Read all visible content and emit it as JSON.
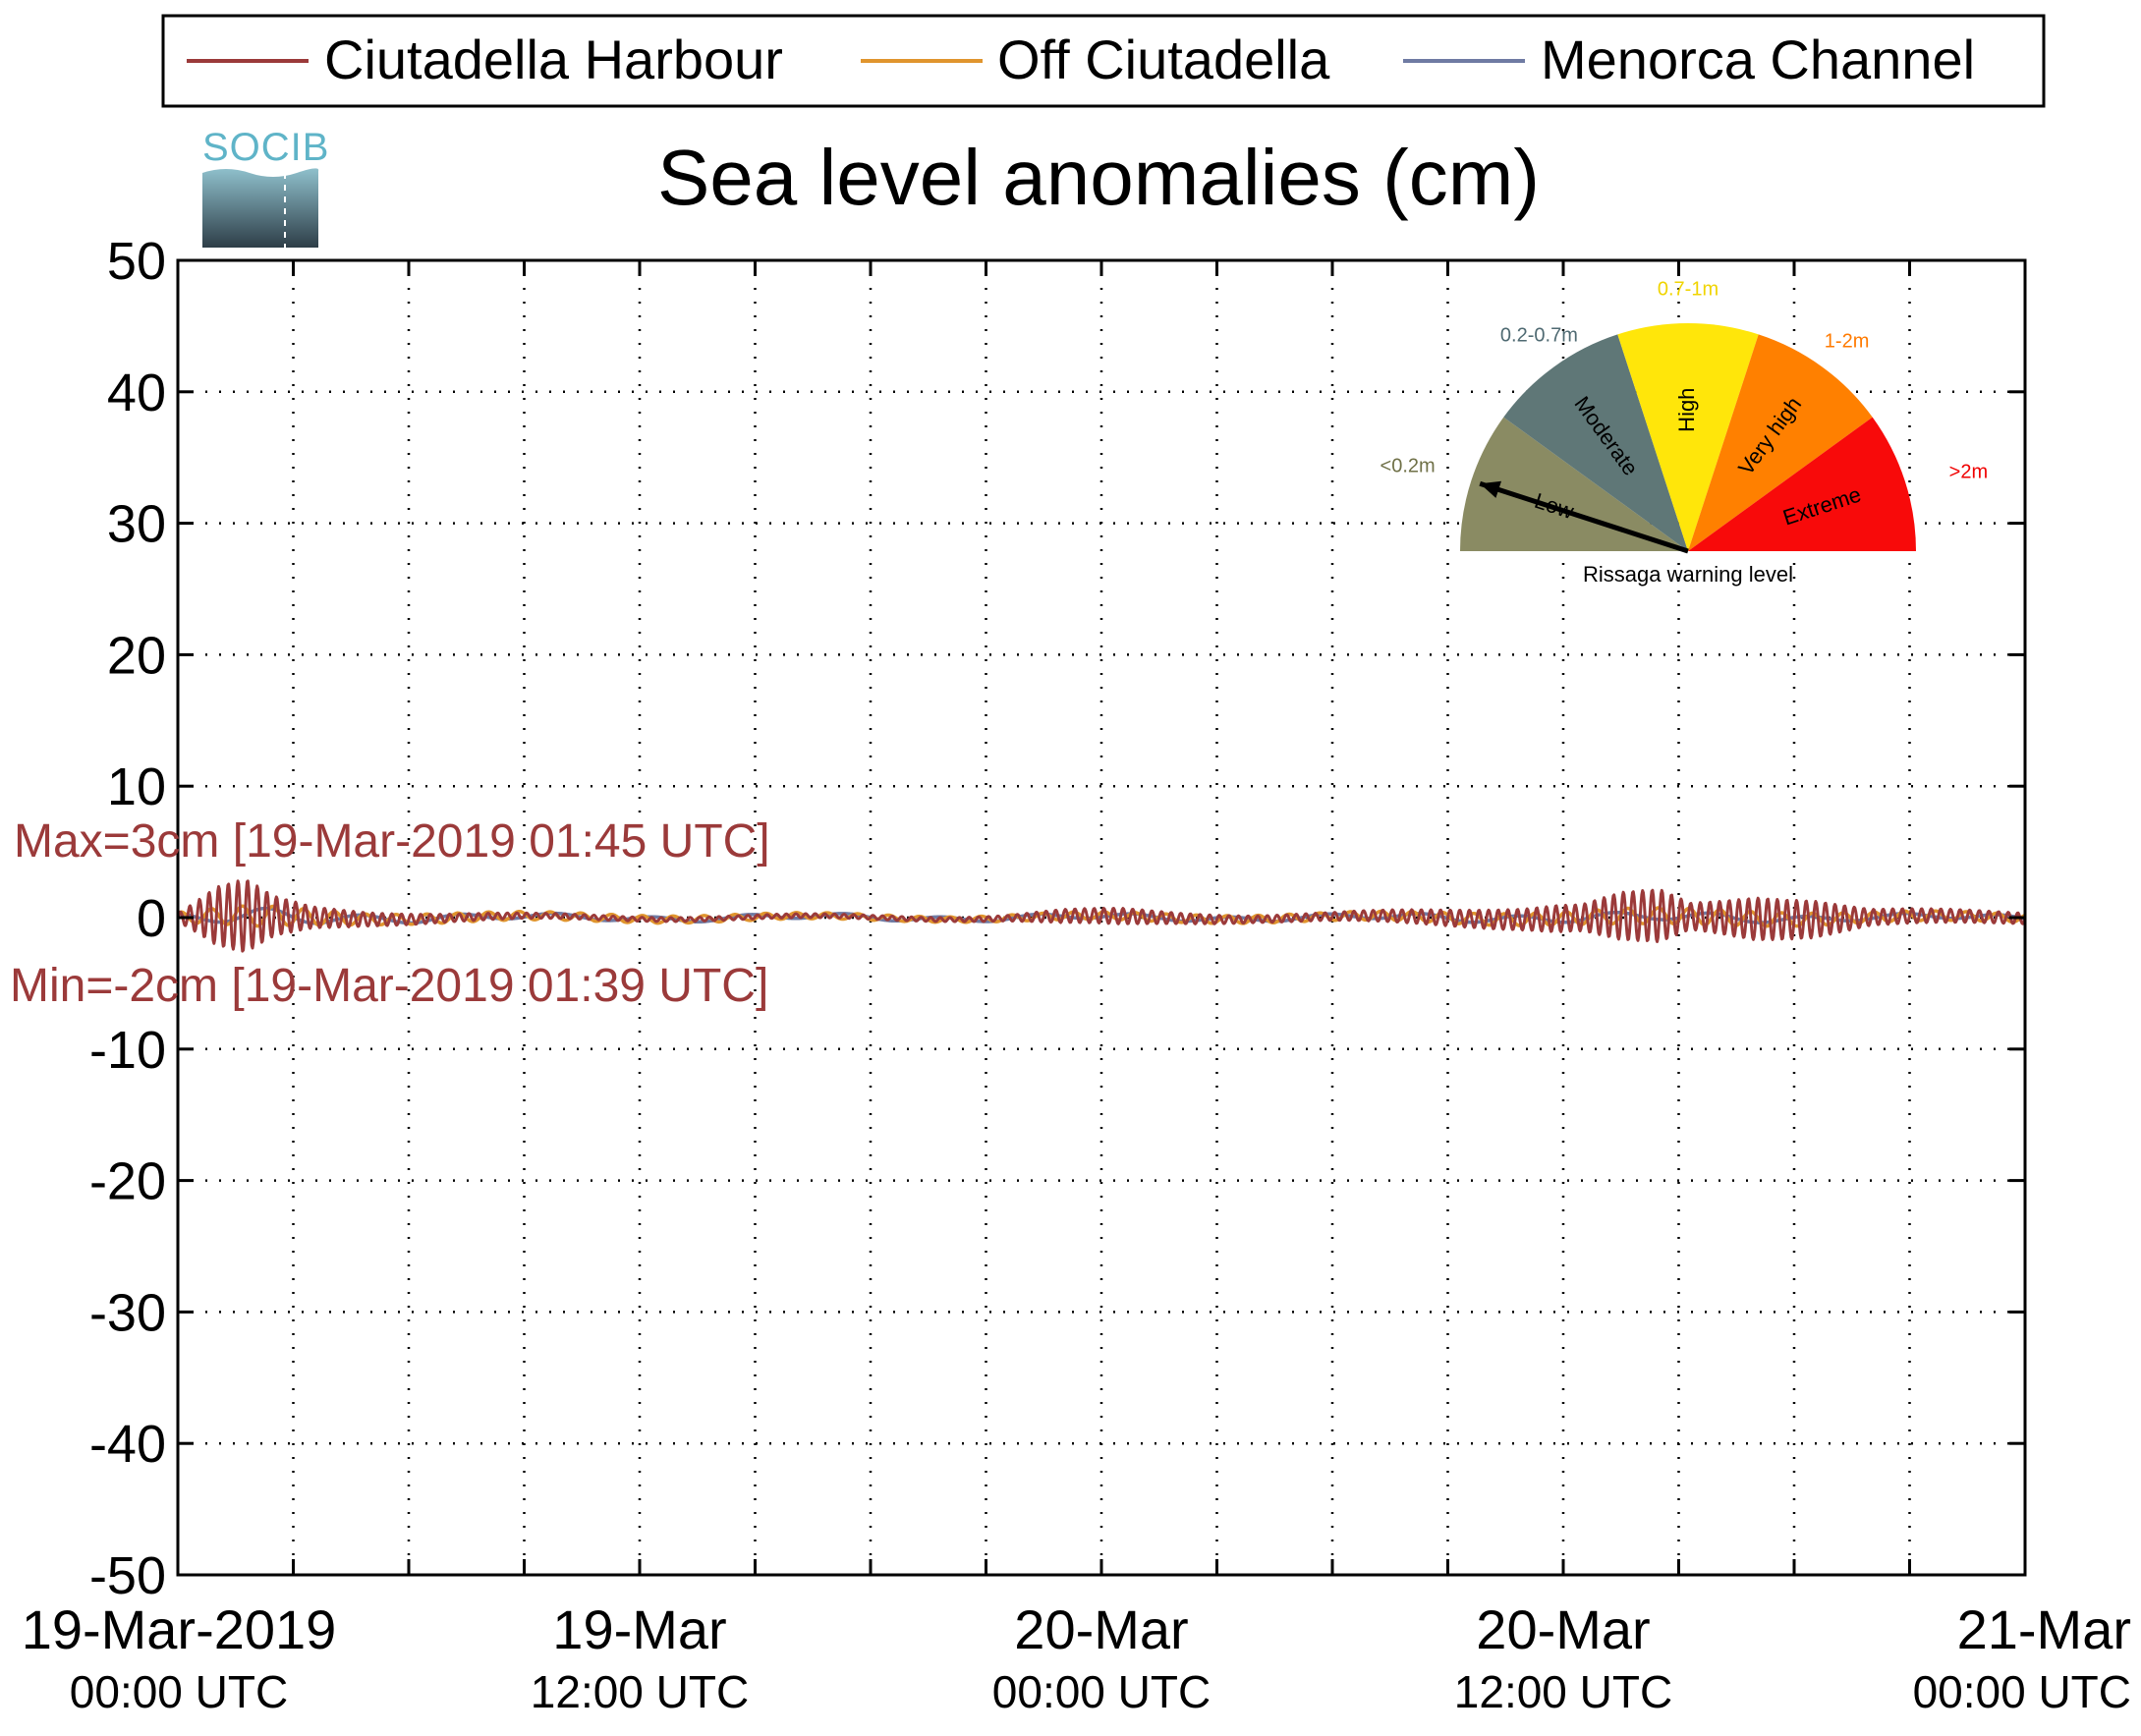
{
  "chart_data": {
    "type": "line",
    "title": "Sea level anomalies (cm)",
    "ylim": [
      -50,
      50
    ],
    "yticks": [
      50,
      40,
      30,
      20,
      10,
      0,
      -10,
      -20,
      -30,
      -40,
      -50
    ],
    "ytick_labels": [
      "50",
      "40",
      "30",
      "20",
      "10",
      "0",
      "-10",
      "-20",
      "-30",
      "-40",
      "-50"
    ],
    "x_range_hours": [
      0,
      48
    ],
    "x_grid_step_hours": 3,
    "xticks": [
      {
        "hour": 0,
        "date": "19-Mar-2019",
        "time": "00:00 UTC"
      },
      {
        "hour": 12,
        "date": "19-Mar",
        "time": "12:00 UTC"
      },
      {
        "hour": 24,
        "date": "20-Mar",
        "time": "00:00 UTC"
      },
      {
        "hour": 36,
        "date": "20-Mar",
        "time": "12:00 UTC"
      },
      {
        "hour": 48,
        "date": "21-Mar",
        "time": "00:00 UTC"
      }
    ],
    "grid": true,
    "legend_position": "top",
    "series": [
      {
        "name": "Ciutadella Harbour",
        "color": "#9b3a3a",
        "envelope_x": [
          0,
          0.5,
          1,
          1.75,
          2.5,
          3.5,
          5,
          7,
          9,
          12,
          16,
          20,
          21.5,
          23,
          24.5,
          26,
          28,
          30,
          33,
          35,
          35.8,
          36.5,
          37.5,
          38.5,
          39.3,
          40,
          41,
          42.5,
          44,
          46,
          48
        ],
        "envelope_amp": [
          0.3,
          1.2,
          2.2,
          2.8,
          1.5,
          0.8,
          0.5,
          0.3,
          0.2,
          0.15,
          0.15,
          0.15,
          0.2,
          0.5,
          0.6,
          0.4,
          0.25,
          0.3,
          0.6,
          0.8,
          1.0,
          1.0,
          1.8,
          2.0,
          1.0,
          1.2,
          1.6,
          1.4,
          0.6,
          0.5,
          0.4
        ],
        "period_hours": 0.25
      },
      {
        "name": "Off Ciutadella",
        "color": "#e0952e",
        "envelope_x": [
          0,
          2,
          5,
          10,
          20,
          24,
          30,
          36,
          38,
          40,
          44,
          48
        ],
        "envelope_amp": [
          0.4,
          0.8,
          0.4,
          0.3,
          0.2,
          0.3,
          0.3,
          0.5,
          0.6,
          0.6,
          0.4,
          0.3
        ],
        "period_hours": 0.8
      },
      {
        "name": "Menorca Channel",
        "color": "#6f7ba3",
        "envelope_x": [
          0,
          2,
          5,
          10,
          20,
          24,
          30,
          36,
          40,
          44,
          48
        ],
        "envelope_amp": [
          0.3,
          0.6,
          0.3,
          0.2,
          0.2,
          0.2,
          0.2,
          0.3,
          0.3,
          0.2,
          0.2
        ],
        "period_hours": 2.5
      }
    ],
    "annotations": [
      {
        "text": "Max=3cm [19-Mar-2019 01:45 UTC]",
        "color": "#9b3a3a"
      },
      {
        "text": "Min=-2cm [19-Mar-2019 01:39 UTC]",
        "color": "#9b3a3a"
      }
    ]
  },
  "logo_text": "SOCIB",
  "gauge": {
    "title": "Rissaga warning level",
    "current_level": "Low",
    "sectors": [
      {
        "name": "Low",
        "range": "<0.2m",
        "color": "#8a8b63",
        "range_color": "#6f7047"
      },
      {
        "name": "Moderate",
        "range": "0.2-0.7m",
        "color": "#5f7777",
        "range_color": "#4f6a72"
      },
      {
        "name": "High",
        "range": "0.7-1m",
        "color": "#ffe60a",
        "range_color": "#f0d400"
      },
      {
        "name": "Very high",
        "range": "1-2m",
        "color": "#ff8000",
        "range_color": "#ff7a00"
      },
      {
        "name": "Extreme",
        "range": ">2m",
        "color": "#f80a0a",
        "range_color": "#f00000"
      }
    ]
  }
}
